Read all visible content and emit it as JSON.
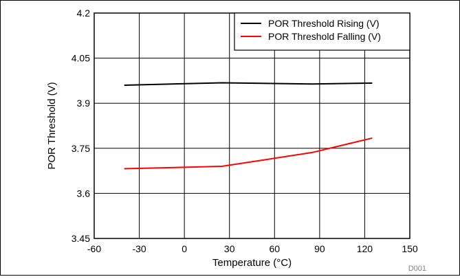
{
  "chart_data": {
    "type": "line",
    "xlabel": "Temperature (°C)",
    "ylabel": "POR Threshold (V)",
    "xlim": [
      -60,
      150
    ],
    "ylim": [
      3.45,
      4.2
    ],
    "x_ticks": [
      "-60",
      "-30",
      "0",
      "30",
      "60",
      "90",
      "120",
      "150"
    ],
    "y_ticks": [
      "3.45",
      "3.6",
      "3.75",
      "3.9",
      "4.05",
      "4.2"
    ],
    "grid": true,
    "legend_position": "top-right",
    "series": [
      {
        "name": "POR Threshold Rising (V)",
        "color": "#000000",
        "x": [
          -40,
          25,
          85,
          125
        ],
        "y": [
          3.96,
          3.968,
          3.964,
          3.967
        ]
      },
      {
        "name": "POR Threshold Falling (V)",
        "color": "#ff0000",
        "x": [
          -40,
          25,
          85,
          125
        ],
        "y": [
          3.682,
          3.69,
          3.736,
          3.784
        ]
      }
    ],
    "figure_id": "D001"
  }
}
